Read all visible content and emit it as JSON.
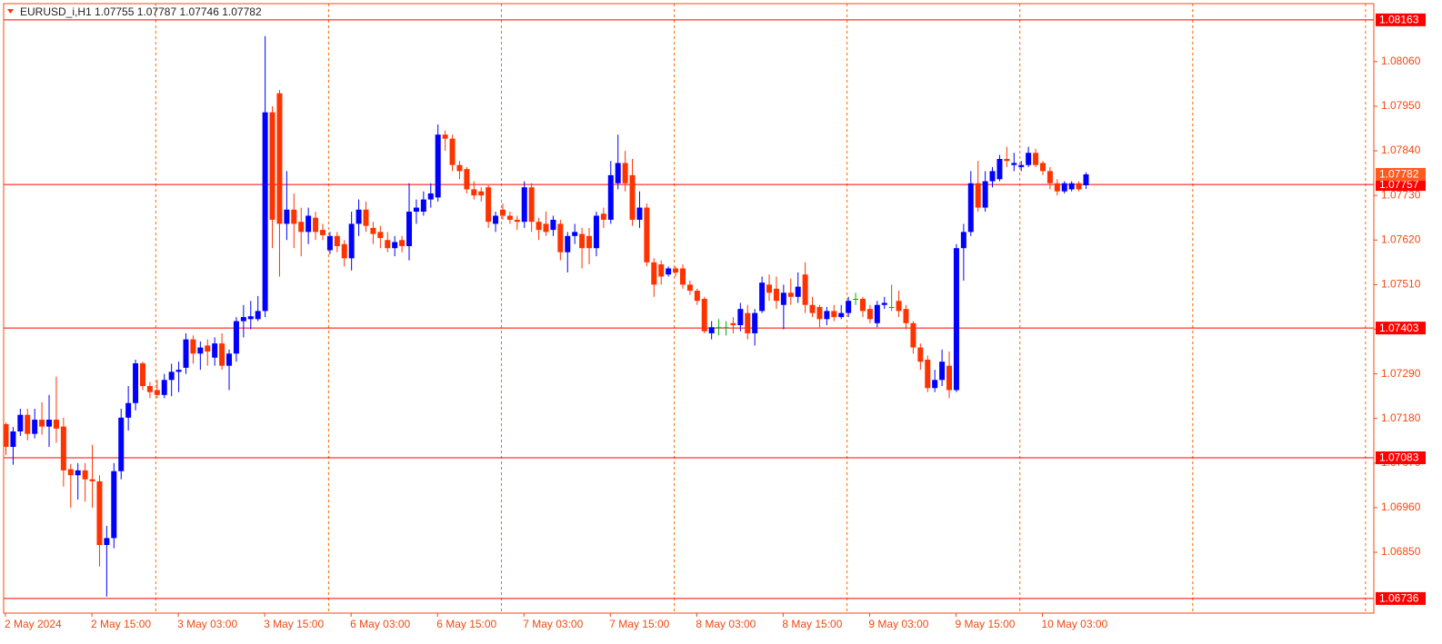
{
  "chart_data": {
    "type": "candlestick",
    "title": "EURUSD_i,H1",
    "categories": [
      "2 May 2024",
      null,
      null,
      null,
      null,
      null,
      null,
      null,
      null,
      null,
      null,
      null,
      "2 May 15:00",
      null,
      null,
      null,
      null,
      null,
      null,
      null,
      null,
      null,
      null,
      null,
      "3 May 03:00",
      null,
      null,
      null,
      null,
      null,
      null,
      null,
      null,
      null,
      null,
      null,
      "3 May 15:00",
      null,
      null,
      null,
      null,
      null,
      null,
      null,
      null,
      null,
      null,
      null,
      "6 May 03:00",
      null,
      null,
      null,
      null,
      null,
      null,
      null,
      null,
      null,
      null,
      null,
      "6 May 15:00",
      null,
      null,
      null,
      null,
      null,
      null,
      null,
      null,
      null,
      null,
      null,
      "7 May 03:00",
      null,
      null,
      null,
      null,
      null,
      null,
      null,
      null,
      null,
      null,
      null,
      "7 May 15:00",
      null,
      null,
      null,
      null,
      null,
      null,
      null,
      null,
      null,
      null,
      null,
      "8 May 03:00",
      null,
      null,
      null,
      null,
      null,
      null,
      null,
      null,
      null,
      null,
      null,
      "8 May 15:00",
      null,
      null,
      null,
      null,
      null,
      null,
      null,
      null,
      null,
      null,
      null,
      "9 May 03:00",
      null,
      null,
      null,
      null,
      null,
      null,
      null,
      null,
      null,
      null,
      null,
      "9 May 15:00",
      null,
      null,
      null,
      null,
      null,
      null,
      null,
      null,
      null,
      null,
      null,
      "10 May 03:00",
      null,
      null,
      null,
      null,
      null,
      null
    ],
    "open": [
      1.07166,
      1.0711,
      1.07148,
      1.07189,
      1.07142,
      1.07177,
      1.0716,
      1.07177,
      1.0716,
      1.07055,
      1.0704,
      1.07052,
      1.0703,
      1.07025,
      1.06868,
      1.06885,
      1.0705,
      1.07182,
      1.07218,
      1.07316,
      1.0726,
      1.0725,
      1.07238,
      1.07275,
      1.07295,
      1.07305,
      1.07375,
      1.0734,
      1.0736,
      1.0733,
      1.07365,
      1.0731,
      1.0734,
      1.0742,
      1.07425,
      1.07425,
      1.07445,
      1.07935,
      1.07982,
      1.0766,
      1.07695,
      1.07665,
      1.0764,
      1.07675,
      1.07645,
      1.07595,
      1.0763,
      1.0761,
      1.07575,
      1.0766,
      1.07695,
      1.0765,
      1.0764,
      1.0762,
      1.076,
      1.0762,
      1.07605,
      1.0769,
      1.0769,
      1.0772,
      1.07725,
      1.0788,
      1.0787,
      1.07805,
      1.07795,
      1.07745,
      1.0774,
      1.0775,
      1.0766,
      1.07695,
      1.0768,
      1.0767,
      1.07665,
      1.0775,
      1.07665,
      1.0766,
      1.07645,
      1.0766,
      1.0759,
      1.0763,
      1.07635,
      1.0763,
      1.076,
      1.07685,
      1.0767,
      1.0776,
      1.0781,
      1.0778,
      1.0767,
      1.077,
      1.07565,
      1.0756,
      1.07535,
      1.0755,
      1.0755,
      1.0751,
      1.07495,
      1.07475,
      1.0739,
      1.07405,
      1.07405,
      1.07415,
      1.0741,
      1.0744,
      1.0739,
      1.07445,
      1.0751,
      1.075,
      1.0746,
      1.0749,
      1.0748,
      1.07535,
      1.0746,
      1.07455,
      1.07425,
      1.07445,
      1.0743,
      1.0744,
      1.07475,
      1.07475,
      1.0745,
      1.07415,
      1.0746,
      1.07455,
      1.0747,
      1.0745,
      1.07415,
      1.07355,
      1.07325,
      1.07255,
      1.07275,
      1.0731,
      1.0725,
      1.076,
      1.0764,
      1.0776,
      1.077,
      1.07765,
      1.0777,
      1.0782,
      1.07805,
      1.078,
      1.07805,
      1.07835,
      1.0781,
      1.0779,
      1.0776,
      1.0774,
      1.07745,
      1.0776,
      1.07755
    ],
    "high": [
      1.0717,
      1.07159,
      1.07204,
      1.07204,
      1.07204,
      1.0722,
      1.07238,
      1.07283,
      1.07182,
      1.07068,
      1.0707,
      1.0707,
      1.07115,
      1.0704,
      1.06915,
      1.0707,
      1.07204,
      1.0726,
      1.07325,
      1.0732,
      1.0727,
      1.07275,
      1.0729,
      1.07315,
      1.0732,
      1.0739,
      1.07385,
      1.0737,
      1.07375,
      1.0738,
      1.0739,
      1.0735,
      1.0743,
      1.0746,
      1.0747,
      1.07482,
      1.08123,
      1.0795,
      1.0799,
      1.0779,
      1.07735,
      1.077,
      1.077,
      1.0769,
      1.0766,
      1.0764,
      1.0764,
      1.0762,
      1.0769,
      1.0772,
      1.07715,
      1.07665,
      1.07655,
      1.0764,
      1.0763,
      1.0763,
      1.0776,
      1.0772,
      1.0774,
      1.0776,
      1.07905,
      1.0789,
      1.0788,
      1.07815,
      1.078,
      1.07765,
      1.0775,
      1.07755,
      1.0769,
      1.0771,
      1.0769,
      1.0768,
      1.07765,
      1.0776,
      1.07675,
      1.0769,
      1.0768,
      1.0767,
      1.0764,
      1.0766,
      1.0765,
      1.0765,
      1.0769,
      1.077,
      1.07815,
      1.0788,
      1.0784,
      1.0782,
      1.0774,
      1.0771,
      1.07575,
      1.0757,
      1.07555,
      1.07555,
      1.0756,
      1.0752,
      1.075,
      1.0748,
      1.0742,
      1.07425,
      1.0742,
      1.0743,
      1.07465,
      1.0746,
      1.0745,
      1.0753,
      1.07535,
      1.0753,
      1.0751,
      1.07525,
      1.0754,
      1.07565,
      1.0748,
      1.0746,
      1.07455,
      1.0746,
      1.0746,
      1.0748,
      1.0749,
      1.0748,
      1.0746,
      1.0747,
      1.0748,
      1.0751,
      1.07495,
      1.0746,
      1.0742,
      1.07365,
      1.07335,
      1.073,
      1.0735,
      1.07345,
      1.0761,
      1.0766,
      1.0779,
      1.07815,
      1.0779,
      1.078,
      1.0783,
      1.0785,
      1.07835,
      1.07815,
      1.0785,
      1.07845,
      1.07815,
      1.078,
      1.0777,
      1.07765,
      1.07765,
      1.07765,
      1.07787
    ],
    "low": [
      1.0709,
      1.07066,
      1.07137,
      1.07126,
      1.07131,
      1.0714,
      1.0711,
      1.0712,
      1.07012,
      1.0696,
      1.0698,
      1.06975,
      1.0696,
      1.06815,
      1.06741,
      1.0686,
      1.0703,
      1.0715,
      1.072,
      1.0725,
      1.0723,
      1.0723,
      1.0723,
      1.07235,
      1.07245,
      1.0729,
      1.07315,
      1.073,
      1.0731,
      1.0731,
      1.073,
      1.0725,
      1.0732,
      1.0738,
      1.074,
      1.0742,
      1.0743,
      1.076,
      1.0753,
      1.0762,
      1.076,
      1.0758,
      1.0761,
      1.0762,
      1.0762,
      1.07585,
      1.0759,
      1.07555,
      1.07545,
      1.0763,
      1.0764,
      1.0761,
      1.076,
      1.0759,
      1.0758,
      1.0759,
      1.0757,
      1.0766,
      1.0768,
      1.077,
      1.07715,
      1.0784,
      1.0779,
      1.0777,
      1.07735,
      1.0772,
      1.07715,
      1.0765,
      1.0764,
      1.0767,
      1.0766,
      1.07645,
      1.0765,
      1.0764,
      1.0762,
      1.0763,
      1.0763,
      1.0757,
      1.0754,
      1.0761,
      1.0755,
      1.0756,
      1.0758,
      1.0765,
      1.0766,
      1.07745,
      1.0774,
      1.07655,
      1.0765,
      1.07555,
      1.0748,
      1.0751,
      1.0753,
      1.0753,
      1.075,
      1.07485,
      1.0746,
      1.0739,
      1.07375,
      1.07385,
      1.07385,
      1.0739,
      1.07395,
      1.07375,
      1.0736,
      1.0744,
      1.0747,
      1.0745,
      1.074,
      1.0746,
      1.07465,
      1.0744,
      1.0743,
      1.07405,
      1.0741,
      1.0742,
      1.07425,
      1.0743,
      1.0746,
      1.0743,
      1.07415,
      1.07405,
      1.0745,
      1.07445,
      1.0743,
      1.074,
      1.0734,
      1.073,
      1.07245,
      1.07245,
      1.0726,
      1.0723,
      1.07245,
      1.0752,
      1.0763,
      1.0769,
      1.0769,
      1.0775,
      1.07765,
      1.078,
      1.0779,
      1.0779,
      1.078,
      1.078,
      1.0778,
      1.07745,
      1.0773,
      1.07735,
      1.0774,
      1.0774,
      1.07746
    ],
    "close": [
      1.0711,
      1.07148,
      1.07189,
      1.07142,
      1.07177,
      1.0716,
      1.07177,
      1.07155,
      1.07052,
      1.0704,
      1.07052,
      1.0703,
      1.07025,
      1.06868,
      1.06885,
      1.0705,
      1.07182,
      1.07218,
      1.07316,
      1.0726,
      1.07245,
      1.07238,
      1.07275,
      1.07295,
      1.073,
      1.07375,
      1.0734,
      1.07355,
      1.07345,
      1.07365,
      1.0731,
      1.0734,
      1.0742,
      1.0743,
      1.07432,
      1.07445,
      1.07935,
      1.0767,
      1.0766,
      1.07695,
      1.0766,
      1.0764,
      1.0768,
      1.0764,
      1.07632,
      1.0763,
      1.07605,
      1.07575,
      1.0766,
      1.07695,
      1.07655,
      1.07635,
      1.07625,
      1.076,
      1.07615,
      1.07605,
      1.0769,
      1.077,
      1.0772,
      1.07735,
      1.0788,
      1.0787,
      1.07805,
      1.0779,
      1.07745,
      1.0773,
      1.0773,
      1.07665,
      1.0768,
      1.0768,
      1.0767,
      1.07665,
      1.0775,
      1.07665,
      1.07645,
      1.0764,
      1.0767,
      1.0759,
      1.0763,
      1.0764,
      1.076,
      1.076,
      1.0768,
      1.0767,
      1.0778,
      1.0781,
      1.0776,
      1.0767,
      1.077,
      1.07565,
      1.0751,
      1.0753,
      1.0755,
      1.0754,
      1.0751,
      1.07495,
      1.0747,
      1.07395,
      1.07405,
      1.07405,
      1.07405,
      1.0741,
      1.0745,
      1.0739,
      1.0744,
      1.07515,
      1.0749,
      1.0747,
      1.0749,
      1.0748,
      1.07505,
      1.0746,
      1.0744,
      1.07425,
      1.07445,
      1.0743,
      1.0744,
      1.0747,
      1.07475,
      1.07445,
      1.07425,
      1.0746,
      1.07465,
      1.07455,
      1.07445,
      1.07415,
      1.07355,
      1.0732,
      1.07255,
      1.07275,
      1.0732,
      1.0725,
      1.076,
      1.0764,
      1.0776,
      1.077,
      1.07765,
      1.0779,
      1.0782,
      1.07815,
      1.0781,
      1.07805,
      1.07835,
      1.07805,
      1.0779,
      1.0776,
      1.0774,
      1.0776,
      1.0776,
      1.07745,
      1.07782
    ],
    "up_color": "#0000ff",
    "down_color": "#ff3300",
    "doji_color": "#00b000",
    "ylim": [
      1.067,
      1.08203
    ],
    "yticks": [
      {
        "value": 1.0806,
        "label": "1.08060"
      },
      {
        "value": 1.0795,
        "label": "1.07950"
      },
      {
        "value": 1.0784,
        "label": "1.07840"
      },
      {
        "value": 1.0773,
        "label": "1.07730"
      },
      {
        "value": 1.0762,
        "label": "1.07620"
      },
      {
        "value": 1.0751,
        "label": "1.07510"
      },
      {
        "value": 1.074,
        "label": "1.07400"
      },
      {
        "value": 1.0729,
        "label": "1.07290"
      },
      {
        "value": 1.0718,
        "label": "1.07180"
      },
      {
        "value": 1.0707,
        "label": "1.07070"
      },
      {
        "value": 1.0696,
        "label": "1.06960"
      },
      {
        "value": 1.0685,
        "label": "1.06850"
      }
    ],
    "hlines": [
      {
        "value": 1.08163,
        "label": "1.08163"
      },
      {
        "value": 1.07757,
        "label": "1.07757"
      },
      {
        "value": 1.07403,
        "label": "1.07403"
      },
      {
        "value": 1.07083,
        "label": "1.07083"
      },
      {
        "value": 1.06736,
        "label": "1.06736"
      }
    ],
    "hline_color": "#ff0000",
    "last_price_color": "#ff5a1f",
    "axis_color": "#f04a14",
    "separator_color": "#ff6a00"
  }
}
